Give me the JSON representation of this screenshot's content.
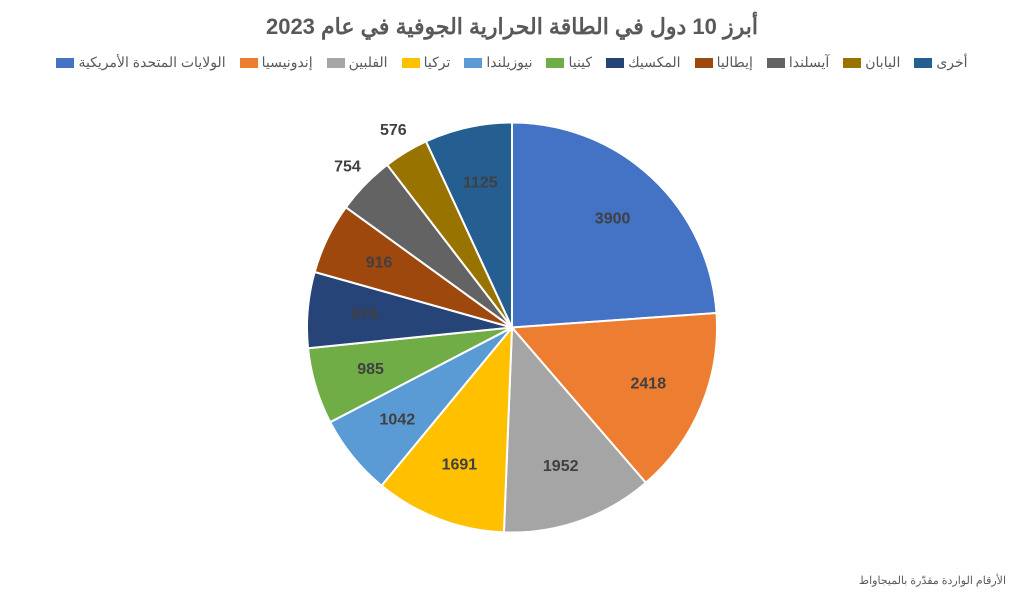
{
  "title": "أبرز 10 دول في الطاقة الحرارية الجوفية في عام 2023",
  "footnote": "الأرقام الواردة مقدّرة بالميجاواط",
  "chart": {
    "type": "pie",
    "radius": 205,
    "label_radius_factor": 0.72,
    "outer_label_radius_factor": 1.12,
    "start_angle_deg": -90,
    "direction": "cw",
    "background_color": "#ffffff",
    "stroke_color": "#ffffff",
    "stroke_width": 2,
    "label_color": "#404040",
    "label_fontsize": 16,
    "slices": [
      {
        "label": "الولايات المتحدة الأمريكية",
        "value": 3900,
        "color": "#4472c4"
      },
      {
        "label": "إندونيسيا",
        "value": 2418,
        "color": "#ed7d31"
      },
      {
        "label": "الفلبين",
        "value": 1952,
        "color": "#a5a5a5"
      },
      {
        "label": "تركيا",
        "value": 1691,
        "color": "#ffc000"
      },
      {
        "label": "نيوزيلندا",
        "value": 1042,
        "color": "#5b9bd5"
      },
      {
        "label": "كينيا",
        "value": 985,
        "color": "#70ad47"
      },
      {
        "label": "المكسيك",
        "value": 976,
        "color": "#264478"
      },
      {
        "label": "إيطاليا",
        "value": 916,
        "color": "#9e480e"
      },
      {
        "label": "آيسلندا",
        "value": 754,
        "color": "#636363"
      },
      {
        "label": "اليابان",
        "value": 576,
        "color": "#997300"
      },
      {
        "label": "أخرى",
        "value": 1125,
        "color": "#255e91"
      }
    ]
  }
}
